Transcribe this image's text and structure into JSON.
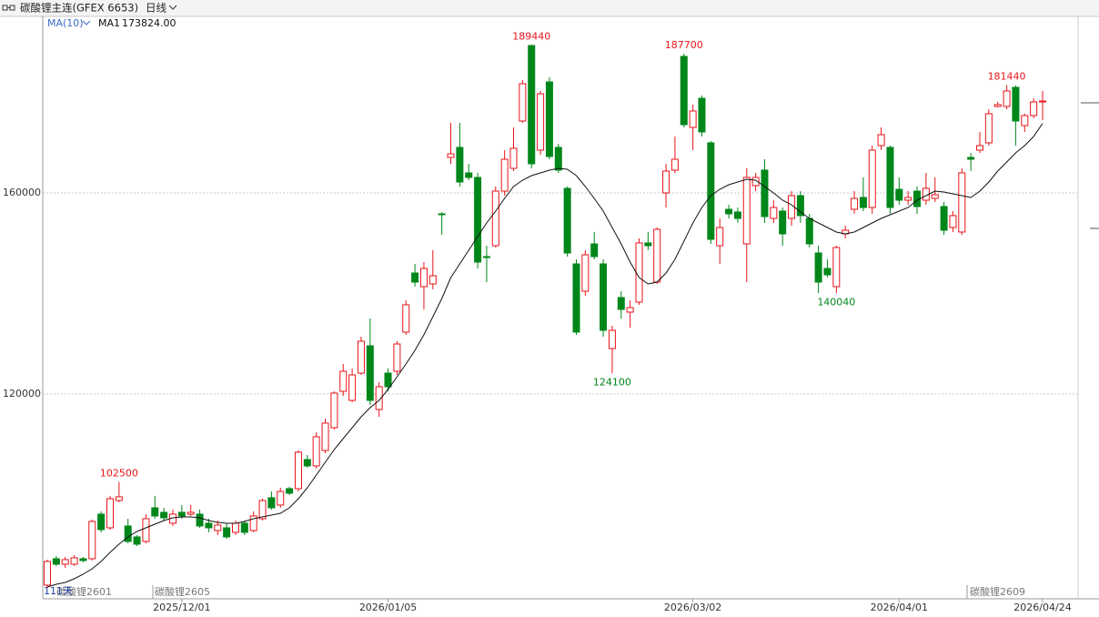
{
  "toolbar": {
    "symbol": "碳酸锂主连(GFEX 6653)",
    "period": "日线"
  },
  "chart_data": {
    "type": "candlestick",
    "indicator": "MA(10)",
    "categories": [
      null,
      null,
      null,
      null,
      null,
      null,
      null,
      null,
      null,
      null,
      null,
      null,
      null,
      null,
      null,
      "2025/12/01",
      null,
      null,
      null,
      null,
      null,
      null,
      null,
      null,
      null,
      null,
      null,
      null,
      null,
      null,
      null,
      null,
      null,
      null,
      null,
      null,
      null,
      null,
      "2026/01/05",
      null,
      null,
      null,
      null,
      null,
      null,
      null,
      null,
      null,
      null,
      null,
      null,
      null,
      null,
      null,
      null,
      null,
      null,
      null,
      null,
      null,
      null,
      null,
      null,
      null,
      null,
      null,
      null,
      null,
      null,
      null,
      null,
      null,
      "2026/03/02",
      null,
      null,
      null,
      null,
      null,
      null,
      null,
      null,
      null,
      null,
      null,
      null,
      null,
      null,
      null,
      null,
      null,
      null,
      null,
      null,
      null,
      null,
      "2026/04/01",
      null,
      null,
      null,
      null,
      null,
      null,
      null,
      null,
      null,
      null,
      null,
      null,
      null,
      null,
      null,
      "2026/04/24"
    ],
    "open": [
      81990,
      87240,
      86150,
      86150,
      87240,
      87240,
      96110,
      93390,
      98820,
      93750,
      91580,
      90680,
      97370,
      96470,
      94300,
      96470,
      96110,
      96110,
      94300,
      92850,
      93390,
      92490,
      94300,
      92850,
      95200,
      99370,
      97920,
      101180,
      101180,
      106970,
      105700,
      108780,
      113300,
      120540,
      118730,
      124160,
      129590,
      116920,
      124160,
      124520,
      132310,
      144070,
      141360,
      141900,
      155840,
      167060,
      169050,
      163980,
      163080,
      147330,
      149500,
      160360,
      164890,
      174300,
      189320,
      168510,
      182080,
      169050,
      160910,
      145880,
      140450,
      149860,
      145880,
      129050,
      139190,
      136290,
      138280,
      150050,
      142260,
      160000,
      164530,
      187150,
      173030,
      178820,
      169960,
      149500,
      156740,
      156200,
      149860,
      161450,
      164530,
      154930,
      156380,
      154930,
      159460,
      154930,
      148050,
      144980,
      141360,
      151860,
      156740,
      159100,
      157100,
      169410,
      169050,
      160720,
      158550,
      160360,
      158550,
      158910,
      157290,
      153120,
      152220,
      167060,
      168510,
      169960,
      177200,
      177200,
      181000,
      173390,
      175390,
      178100
    ],
    "high": [
      87060,
      87780,
      87600,
      87960,
      87600,
      95020,
      96650,
      99730,
      102500,
      95200,
      91940,
      96110,
      99730,
      97370,
      97010,
      97920,
      97920,
      97010,
      95200,
      94840,
      94300,
      94840,
      94840,
      96650,
      99180,
      100630,
      101360,
      101540,
      108780,
      107870,
      112400,
      115110,
      120540,
      125970,
      125070,
      131400,
      135020,
      122350,
      125070,
      130500,
      138640,
      145880,
      146240,
      148600,
      156200,
      173940,
      173940,
      165790,
      163980,
      149500,
      161270,
      168510,
      173030,
      182440,
      189440,
      180270,
      182990,
      169770,
      161270,
      146790,
      148600,
      152220,
      146790,
      133570,
      140450,
      138640,
      150950,
      152220,
      153120,
      165790,
      171220,
      187700,
      177560,
      179370,
      170320,
      154930,
      157650,
      157100,
      164890,
      163980,
      166700,
      158550,
      157100,
      160360,
      160360,
      155840,
      149500,
      146790,
      149500,
      153480,
      160360,
      163080,
      169410,
      173030,
      169410,
      163080,
      160360,
      161270,
      163980,
      163080,
      158190,
      156380,
      164890,
      167960,
      172130,
      176650,
      178100,
      181440,
      181360,
      175750,
      178820,
      180270
    ],
    "low": [
      81450,
      85790,
      85430,
      85790,
      86510,
      86880,
      92490,
      93030,
      98460,
      90320,
      89770,
      90320,
      95200,
      94840,
      93750,
      95200,
      95750,
      93390,
      92490,
      91940,
      91220,
      91940,
      91940,
      92490,
      94840,
      97010,
      97370,
      99910,
      100630,
      105340,
      105160,
      108230,
      112940,
      119640,
      118370,
      123800,
      117830,
      115470,
      120540,
      123800,
      131760,
      141360,
      136830,
      140810,
      151670,
      165790,
      161270,
      162530,
      144980,
      142260,
      149140,
      159460,
      164340,
      173940,
      164890,
      167600,
      166700,
      163980,
      147330,
      131760,
      139550,
      146790,
      131400,
      124100,
      135020,
      133210,
      137740,
      148600,
      141900,
      157100,
      163980,
      173030,
      168510,
      171220,
      149860,
      145880,
      154930,
      154030,
      142260,
      160360,
      154030,
      154030,
      149500,
      153480,
      154030,
      149140,
      140090,
      143170,
      140040,
      150950,
      155840,
      156380,
      155840,
      168510,
      155840,
      157650,
      157650,
      155840,
      157650,
      158190,
      151670,
      152220,
      151670,
      164340,
      167960,
      169410,
      177010,
      176650,
      169410,
      172130,
      174840,
      174480
    ],
    "close": [
      86700,
      86150,
      87060,
      87420,
      86880,
      94660,
      93030,
      99180,
      99550,
      90680,
      90130,
      95200,
      95750,
      95380,
      96110,
      95750,
      96470,
      93750,
      93390,
      93940,
      91580,
      94300,
      92490,
      95750,
      98820,
      97370,
      100630,
      100270,
      108420,
      105700,
      111490,
      114210,
      120180,
      124520,
      123800,
      130500,
      118730,
      121450,
      121450,
      129950,
      137740,
      142260,
      144980,
      143530,
      155660,
      167780,
      162170,
      163080,
      146240,
      147150,
      160360,
      166700,
      168870,
      181720,
      165790,
      179730,
      167240,
      164530,
      148050,
      132310,
      147690,
      147330,
      132670,
      132670,
      136830,
      137190,
      150050,
      149500,
      152760,
      164340,
      166700,
      173580,
      176290,
      172130,
      150770,
      153120,
      155840,
      154930,
      163080,
      163080,
      155290,
      157100,
      151860,
      159460,
      155480,
      149860,
      142260,
      143710,
      149140,
      152580,
      158910,
      157100,
      168510,
      171580,
      157100,
      158550,
      159100,
      157290,
      160910,
      159640,
      152580,
      155480,
      163980,
      166700,
      169410,
      175750,
      177560,
      180270,
      174300,
      175390,
      178100,
      178280
    ],
    "ma": {
      "name": "MA1",
      "value_label": "173824.00",
      "color": "#111111",
      "values": [
        81630,
        82170,
        82530,
        83260,
        84160,
        85250,
        86700,
        88510,
        90130,
        91580,
        92670,
        93390,
        94120,
        94840,
        95380,
        95560,
        95560,
        95380,
        94840,
        94480,
        94300,
        94300,
        94660,
        95200,
        95560,
        95930,
        96290,
        97370,
        99180,
        101360,
        103890,
        106420,
        108960,
        111130,
        113300,
        115470,
        117280,
        118730,
        120900,
        123440,
        125970,
        128690,
        131760,
        135380,
        139000,
        143170,
        145880,
        148600,
        151310,
        154030,
        156380,
        158910,
        161270,
        162530,
        163440,
        163980,
        164530,
        164890,
        164710,
        163440,
        161270,
        158910,
        156380,
        153120,
        149860,
        146240,
        143170,
        141900,
        142260,
        144070,
        146790,
        150410,
        154030,
        157100,
        159460,
        160720,
        161630,
        162170,
        162720,
        162530,
        161270,
        160000,
        158550,
        157650,
        156200,
        154930,
        154030,
        153120,
        152220,
        151860,
        152220,
        153120,
        154030,
        154930,
        155660,
        156380,
        157100,
        158550,
        159460,
        160360,
        160180,
        159820,
        159460,
        159100,
        160360,
        162170,
        164340,
        166150,
        167960,
        169410,
        171220,
        173824
      ]
    },
    "up_color": "#e8141a",
    "down_color": "#00871a",
    "ylim": [
      79270,
      194750
    ],
    "yticks": [
      120000,
      160000
    ],
    "grid": true,
    "contracts": [
      "碳酸锂2601",
      "碳酸锂2605",
      "碳酸锂2609"
    ],
    "day_count": "111天"
  }
}
